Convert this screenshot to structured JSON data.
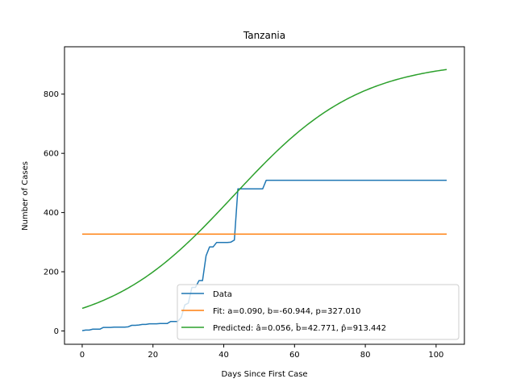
{
  "chart_data": {
    "type": "line",
    "title": "Tanzania",
    "xlabel": "Days Since First Case",
    "ylabel": "Number of Cases",
    "xlim": [
      -5,
      108
    ],
    "ylim": [
      -45,
      960
    ],
    "xticks": [
      0,
      20,
      40,
      60,
      80,
      100
    ],
    "yticks": [
      0,
      200,
      400,
      600,
      800
    ],
    "xtick_labels": [
      "0",
      "20",
      "40",
      "60",
      "80",
      "100"
    ],
    "ytick_labels": [
      "0",
      "200",
      "400",
      "600",
      "800"
    ],
    "grid": false,
    "legend_position": "lower-right",
    "series": [
      {
        "name": "Data",
        "color": "#1f77b4",
        "x": [
          0,
          1,
          2,
          3,
          4,
          5,
          6,
          7,
          8,
          9,
          10,
          11,
          12,
          13,
          14,
          15,
          16,
          17,
          18,
          19,
          20,
          21,
          22,
          23,
          24,
          25,
          26,
          27,
          28,
          29,
          30,
          31,
          32,
          33,
          34,
          35,
          36,
          37,
          38,
          39,
          40,
          41,
          42,
          43,
          44,
          45,
          46,
          47,
          48,
          49,
          50,
          51,
          52,
          53,
          54,
          55,
          56,
          57,
          58,
          59,
          60,
          61,
          62,
          63,
          64,
          65,
          66,
          67,
          68,
          69,
          70,
          71,
          72,
          73,
          74,
          75,
          76,
          77,
          78,
          79,
          80,
          81,
          82,
          83,
          84,
          85,
          86,
          87,
          88,
          89,
          90,
          91,
          92,
          93,
          94,
          95,
          96,
          97,
          98,
          99,
          100,
          101,
          102,
          103
        ],
        "y": [
          1,
          3,
          3,
          6,
          6,
          6,
          12,
          12,
          12,
          13,
          13,
          13,
          13,
          14,
          19,
          19,
          20,
          22,
          22,
          24,
          24,
          24,
          25,
          25,
          25,
          32,
          32,
          32,
          46,
          88,
          94,
          147,
          147,
          170,
          170,
          254,
          284,
          284,
          299,
          299,
          299,
          299,
          300,
          307,
          480,
          480,
          480,
          480,
          480,
          480,
          480,
          480,
          509,
          509,
          509,
          509,
          509,
          509,
          509,
          509,
          509,
          509,
          509,
          509,
          509,
          509,
          509,
          509,
          509,
          509,
          509,
          509,
          509,
          509,
          509,
          509,
          509,
          509,
          509,
          509,
          509,
          509,
          509,
          509,
          509,
          509,
          509,
          509,
          509,
          509,
          509,
          509,
          509,
          509,
          509,
          509,
          509,
          509,
          509,
          509,
          509,
          509,
          509,
          509
        ]
      },
      {
        "name": "Fit: a=0.090, b=-60.944, p=327.010",
        "color": "#ff7f0e",
        "x": [
          0,
          103
        ],
        "y": [
          327.01,
          327.01
        ]
      },
      {
        "name": "Predicted: â=0.056, b̂=42.771, p̂=913.442",
        "color": "#2ca02c",
        "model": "logistic",
        "params": {
          "a": 0.056,
          "b": 42.771,
          "p": 913.442
        },
        "x_range": [
          0,
          103
        ]
      }
    ]
  }
}
